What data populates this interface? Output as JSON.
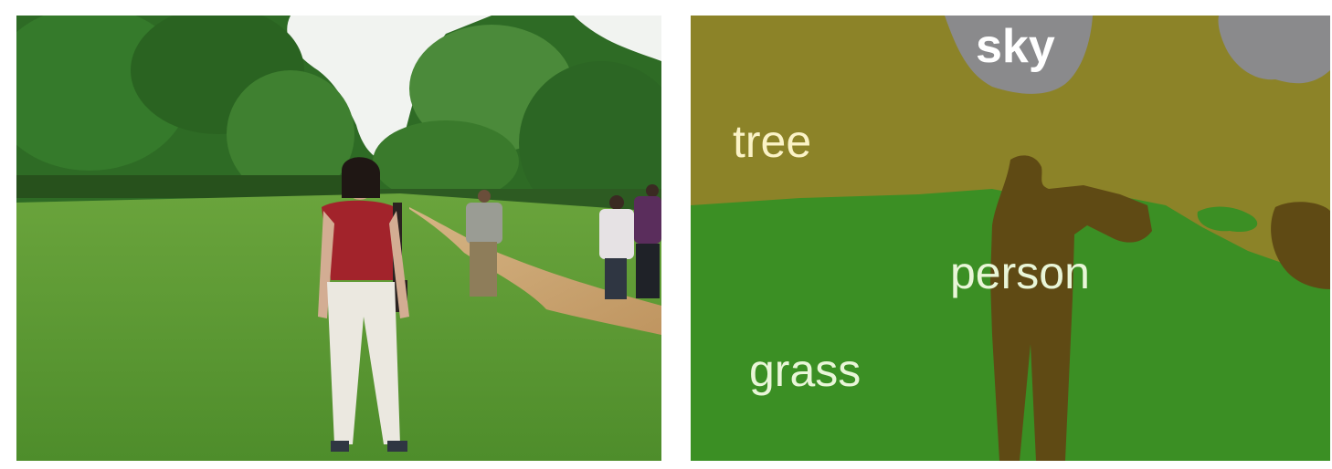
{
  "segmentation": {
    "labels": {
      "sky": "sky",
      "tree": "tree",
      "person": "person",
      "grass": "grass"
    },
    "class_colors": {
      "sky": "#8a8a8c",
      "tree": "#8c8328",
      "grass": "#3b8f24",
      "person": "#5f4a14"
    }
  },
  "photo": {
    "subject": "woman-standing-on-lawn",
    "colors": {
      "sky": "#f2f4f2",
      "foliage": "#2f6a24",
      "lawn": "#5c9a33",
      "path": "#c9a26e",
      "shirt": "#a2232b",
      "trousers": "#e8e6de"
    }
  }
}
